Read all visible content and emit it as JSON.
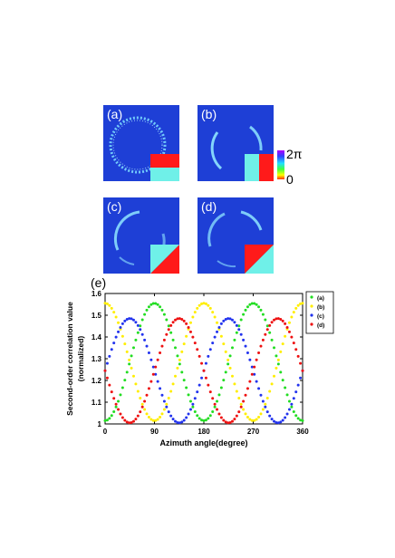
{
  "panels": [
    {
      "label": "(a)"
    },
    {
      "label": "(b)"
    },
    {
      "label": "(c)"
    },
    {
      "label": "(d)"
    }
  ],
  "colorbar": {
    "max_label": "2π",
    "min_label": "0"
  },
  "figure_e_label": "(e)",
  "colors": {
    "panel_bg": "#1e3fd6",
    "ring": "#9fe7ff",
    "mask_red": "#ff1a1a",
    "mask_cyan": "#6ff0e8"
  },
  "chart_data": {
    "type": "scatter",
    "xlabel": "Azimuth angle(degree)",
    "ylabel_line1": "Second-order correlation value",
    "ylabel_line2": "(normalized)",
    "xlim": [
      0,
      360
    ],
    "ylim": [
      1,
      1.6
    ],
    "xticks": [
      "0",
      "90",
      "180",
      "270",
      "360"
    ],
    "yticks": [
      "1",
      "1.1",
      "1.2",
      "1.3",
      "1.4",
      "1.5",
      "1.6"
    ],
    "legend_position": "right-top",
    "series": [
      {
        "name": "(a)",
        "color": "#22dd22",
        "amplitude": 0.27,
        "center": 1.285,
        "frequency": 2,
        "peak_at": 90,
        "step": 4
      },
      {
        "name": "(b)",
        "color": "#ffee00",
        "amplitude": 0.27,
        "center": 1.285,
        "frequency": 2,
        "peak_at": 0,
        "step": 4
      },
      {
        "name": "(c)",
        "color": "#2233ee",
        "amplitude": 0.24,
        "center": 1.245,
        "frequency": 2,
        "peak_at": 45,
        "step": 4
      },
      {
        "name": "(d)",
        "color": "#ee1111",
        "amplitude": 0.24,
        "center": 1.245,
        "frequency": 2,
        "peak_at": 135,
        "step": 4
      }
    ]
  }
}
